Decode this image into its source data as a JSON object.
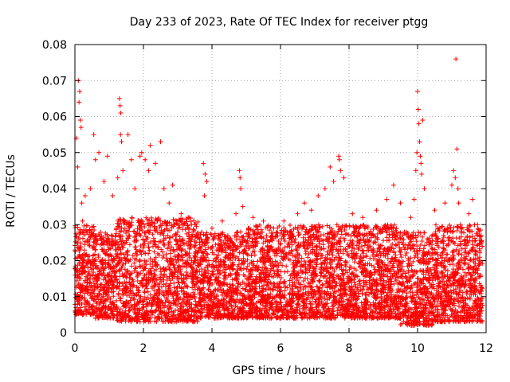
{
  "chart_data": {
    "type": "scatter",
    "title": "Day 233 of 2023, Rate Of TEC Index for receiver ptgg",
    "xlabel": "GPS time / hours",
    "ylabel": "ROTI / TECUs",
    "xlim": [
      0,
      12
    ],
    "ylim": [
      0,
      0.08
    ],
    "x_ticks": [
      0,
      2,
      4,
      6,
      8,
      10,
      12
    ],
    "x_tick_labels": [
      "0",
      "2",
      "4",
      "6",
      "8",
      "10",
      "12"
    ],
    "y_ticks": [
      0,
      0.01,
      0.02,
      0.03,
      0.04,
      0.05,
      0.06,
      0.07,
      0.08
    ],
    "y_tick_labels": [
      "0",
      "0.01",
      "0.02",
      "0.03",
      "0.04",
      "0.05",
      "0.06",
      "0.07",
      "0.08"
    ],
    "grid": true,
    "marker": "+",
    "color": "#ff0000",
    "series": [
      {
        "name": "ROTI",
        "points": [
          [
            0.02,
            0.018
          ],
          [
            0.04,
            0.054
          ],
          [
            0.06,
            0.025
          ],
          [
            0.08,
            0.046
          ],
          [
            0.1,
            0.07
          ],
          [
            0.12,
            0.064
          ],
          [
            0.14,
            0.067
          ],
          [
            0.16,
            0.059
          ],
          [
            0.18,
            0.057
          ],
          [
            0.2,
            0.036
          ],
          [
            0.22,
            0.031
          ],
          [
            0.3,
            0.038
          ],
          [
            0.45,
            0.04
          ],
          [
            0.55,
            0.055
          ],
          [
            0.6,
            0.048
          ],
          [
            0.7,
            0.05
          ],
          [
            0.85,
            0.042
          ],
          [
            0.95,
            0.049
          ],
          [
            1.1,
            0.038
          ],
          [
            1.25,
            0.043
          ],
          [
            1.3,
            0.065
          ],
          [
            1.32,
            0.063
          ],
          [
            1.34,
            0.061
          ],
          [
            1.33,
            0.055
          ],
          [
            1.36,
            0.053
          ],
          [
            1.4,
            0.045
          ],
          [
            1.55,
            0.055
          ],
          [
            1.65,
            0.048
          ],
          [
            1.75,
            0.04
          ],
          [
            1.9,
            0.049
          ],
          [
            1.95,
            0.05
          ],
          [
            2.05,
            0.048
          ],
          [
            2.15,
            0.045
          ],
          [
            2.2,
            0.052
          ],
          [
            2.35,
            0.047
          ],
          [
            2.5,
            0.053
          ],
          [
            2.6,
            0.04
          ],
          [
            2.75,
            0.036
          ],
          [
            2.85,
            0.041
          ],
          [
            3.1,
            0.033
          ],
          [
            3.4,
            0.03
          ],
          [
            3.75,
            0.047
          ],
          [
            3.8,
            0.044
          ],
          [
            3.85,
            0.042
          ],
          [
            3.78,
            0.038
          ],
          [
            4.0,
            0.029
          ],
          [
            4.3,
            0.031
          ],
          [
            4.7,
            0.033
          ],
          [
            4.8,
            0.045
          ],
          [
            4.82,
            0.043
          ],
          [
            4.84,
            0.04
          ],
          [
            4.9,
            0.035
          ],
          [
            5.2,
            0.032
          ],
          [
            5.5,
            0.031
          ],
          [
            5.8,
            0.029
          ],
          [
            6.1,
            0.031
          ],
          [
            6.5,
            0.033
          ],
          [
            6.7,
            0.036
          ],
          [
            6.9,
            0.034
          ],
          [
            7.1,
            0.038
          ],
          [
            7.3,
            0.04
          ],
          [
            7.45,
            0.046
          ],
          [
            7.55,
            0.042
          ],
          [
            7.7,
            0.049
          ],
          [
            7.72,
            0.048
          ],
          [
            7.75,
            0.045
          ],
          [
            7.85,
            0.043
          ],
          [
            8.1,
            0.033
          ],
          [
            8.4,
            0.032
          ],
          [
            8.8,
            0.034
          ],
          [
            9.1,
            0.037
          ],
          [
            9.3,
            0.041
          ],
          [
            9.5,
            0.036
          ],
          [
            9.8,
            0.032
          ],
          [
            9.9,
            0.037
          ],
          [
            9.95,
            0.045
          ],
          [
            9.98,
            0.05
          ],
          [
            10.0,
            0.067
          ],
          [
            10.02,
            0.062
          ],
          [
            10.04,
            0.058
          ],
          [
            10.06,
            0.053
          ],
          [
            10.08,
            0.049
          ],
          [
            10.1,
            0.047
          ],
          [
            10.12,
            0.044
          ],
          [
            10.15,
            0.059
          ],
          [
            10.2,
            0.04
          ],
          [
            10.5,
            0.034
          ],
          [
            10.8,
            0.036
          ],
          [
            11.0,
            0.041
          ],
          [
            11.05,
            0.045
          ],
          [
            11.1,
            0.043
          ],
          [
            11.15,
            0.051
          ],
          [
            11.12,
            0.076
          ],
          [
            11.18,
            0.04
          ],
          [
            11.2,
            0.036
          ],
          [
            11.25,
            0.03
          ],
          [
            11.5,
            0.033
          ],
          [
            11.6,
            0.037
          ],
          [
            11.75,
            0.03
          ],
          [
            11.8,
            0.028
          ]
        ]
      }
    ],
    "bulk_density": {
      "note": "Dense cloud of ROTI values mostly between 0.003 and 0.028 across 0-12 h",
      "segments": [
        {
          "x0": 0.0,
          "x1": 0.6,
          "lo": 0.005,
          "hi": 0.03
        },
        {
          "x0": 0.6,
          "x1": 1.2,
          "lo": 0.004,
          "hi": 0.028
        },
        {
          "x0": 1.2,
          "x1": 3.6,
          "lo": 0.003,
          "hi": 0.032
        },
        {
          "x0": 3.6,
          "x1": 5.0,
          "lo": 0.004,
          "hi": 0.028
        },
        {
          "x0": 5.0,
          "x1": 7.0,
          "lo": 0.004,
          "hi": 0.03
        },
        {
          "x0": 7.0,
          "x1": 9.5,
          "lo": 0.004,
          "hi": 0.03
        },
        {
          "x0": 9.5,
          "x1": 10.5,
          "lo": 0.002,
          "hi": 0.028
        },
        {
          "x0": 10.5,
          "x1": 11.9,
          "lo": 0.003,
          "hi": 0.03
        }
      ]
    }
  }
}
